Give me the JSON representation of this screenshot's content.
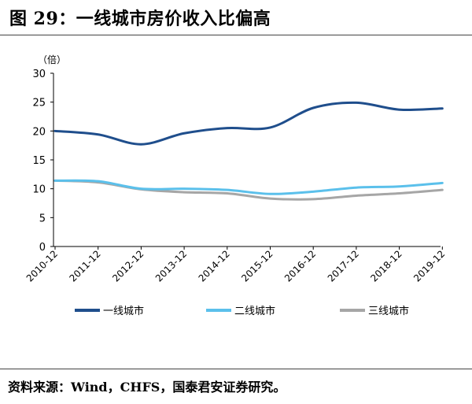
{
  "figure": {
    "title": "图 29：一线城市房价收入比偏高",
    "source": "资料来源：Wind，CHFS，国泰君安证券研究。"
  },
  "chart_data": {
    "type": "line",
    "unit_label": "（倍）",
    "xlabel": "",
    "ylabel": "",
    "categories": [
      "2010-12",
      "2011-12",
      "2012-12",
      "2013-12",
      "2014-12",
      "2015-12",
      "2016-12",
      "2017-12",
      "2018-12",
      "2019-12"
    ],
    "ylim": [
      0,
      30
    ],
    "yticks": [
      0,
      5,
      10,
      15,
      20,
      25,
      30
    ],
    "grid": false,
    "legend_position": "bottom",
    "series": [
      {
        "name": "一线城市",
        "color": "#1F4E8C",
        "values": [
          20.0,
          19.4,
          17.7,
          19.6,
          20.5,
          20.6,
          24.0,
          24.9,
          23.7,
          23.9
        ]
      },
      {
        "name": "二线城市",
        "color": "#5BC0EB",
        "values": [
          11.4,
          11.3,
          10.0,
          10.0,
          9.8,
          9.1,
          9.5,
          10.2,
          10.4,
          11.0
        ]
      },
      {
        "name": "三线城市",
        "color": "#A6A6A6",
        "values": [
          11.4,
          11.1,
          9.9,
          9.4,
          9.2,
          8.3,
          8.2,
          8.8,
          9.2,
          9.8
        ]
      }
    ]
  }
}
